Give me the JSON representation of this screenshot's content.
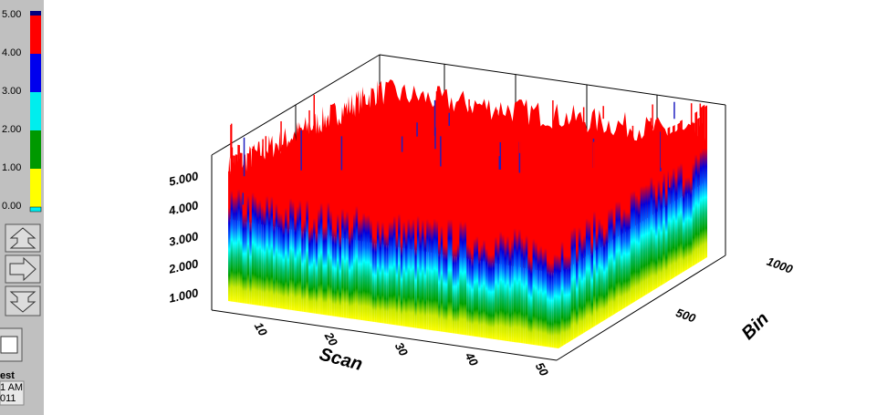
{
  "sidebar": {
    "colorbar": {
      "labels": [
        "5.00",
        "4.00",
        "3.00",
        "2.00",
        "1.00",
        "0.00"
      ],
      "colors": [
        "#ff0000",
        "#0000ee",
        "#00eeee",
        "#009900",
        "#ffff00"
      ]
    },
    "footer": [
      "est",
      "1 AM",
      "011"
    ]
  },
  "plot": {
    "z_tick_labels": [
      "5.000",
      "4.000",
      "3.000",
      "2.000",
      "1.000"
    ],
    "scan_tick_labels": [
      "10",
      "20",
      "30",
      "40",
      "50"
    ],
    "bin_tick_labels": [
      "500",
      "1000"
    ],
    "x_label": "Scan",
    "y_label": "Bin"
  }
}
